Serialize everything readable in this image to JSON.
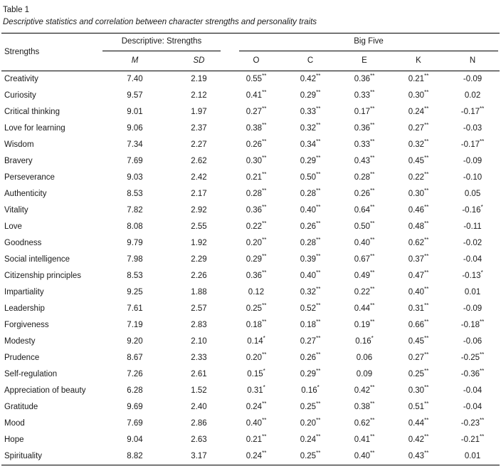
{
  "chart_data": {
    "type": "table",
    "title": "Table 1",
    "caption": "Descriptive statistics and correlation between character strengths and personality traits",
    "column_groups": [
      {
        "label": "",
        "span": 1
      },
      {
        "label": "Descriptive: Strengths",
        "span": 2
      },
      {
        "label": "Big Five",
        "span": 5
      }
    ],
    "columns": [
      "Strengths",
      "M",
      "SD",
      "O",
      "C",
      "E",
      "K",
      "N"
    ],
    "rows": [
      [
        "Creativity",
        "7.40",
        "2.19",
        "0.55**",
        "0.42**",
        "0.36**",
        "0.21**",
        "-0.09"
      ],
      [
        "Curiosity",
        "9.57",
        "2.12",
        "0.41**",
        "0.29**",
        "0.33**",
        "0.30**",
        "0.02"
      ],
      [
        "Critical thinking",
        "9.01",
        "1.97",
        "0.27**",
        "0.33**",
        "0.17**",
        "0.24**",
        "-0.17**"
      ],
      [
        "Love for learning",
        "9.06",
        "2.37",
        "0.38**",
        "0.32**",
        "0.36**",
        "0.27**",
        "-0.03"
      ],
      [
        "Wisdom",
        "7.34",
        "2.27",
        "0.26**",
        "0.34**",
        "0.33**",
        "0.32**",
        "-0.17**"
      ],
      [
        "Bravery",
        "7.69",
        "2.62",
        "0.30**",
        "0.29**",
        "0.43**",
        "0.45**",
        "-0.09"
      ],
      [
        "Perseverance",
        "9.03",
        "2.42",
        "0.21**",
        "0.50**",
        "0.28**",
        "0.22**",
        "-0.10"
      ],
      [
        "Authenticity",
        "8.53",
        "2.17",
        "0.28**",
        "0.28**",
        "0.26**",
        "0.30**",
        "0.05"
      ],
      [
        "Vitality",
        "7.82",
        "2.92",
        "0.36**",
        "0.40**",
        "0.64**",
        "0.46**",
        "-0.16*"
      ],
      [
        "Love",
        "8.08",
        "2.55",
        "0.22**",
        "0.26**",
        "0.50**",
        "0.48**",
        "-0.11"
      ],
      [
        "Goodness",
        "9.79",
        "1.92",
        "0.20**",
        "0.28**",
        "0.40**",
        "0.62**",
        "-0.02"
      ],
      [
        "Social intelligence",
        "7.98",
        "2.29",
        "0.29**",
        "0.39**",
        "0.67**",
        "0.37**",
        "-0.04"
      ],
      [
        "Citizenship principles",
        "8.53",
        "2.26",
        "0.36**",
        "0.40**",
        "0.49**",
        "0.47**",
        "-0.13*"
      ],
      [
        "Impartiality",
        "9.25",
        "1.88",
        "0.12",
        "0.32**",
        "0.22**",
        "0.40**",
        "0.01"
      ],
      [
        "Leadership",
        "7.61",
        "2.57",
        "0.25**",
        "0.52**",
        "0.44**",
        "0.31**",
        "-0.09"
      ],
      [
        "Forgiveness",
        "7.19",
        "2.83",
        "0.18**",
        "0.18**",
        "0.19**",
        "0.66**",
        "-0.18**"
      ],
      [
        "Modesty",
        "9.20",
        "2.10",
        "0.14*",
        "0.27**",
        "0.16*",
        "0.45**",
        "-0.06"
      ],
      [
        "Prudence",
        "8.67",
        "2.33",
        "0.20**",
        "0.26**",
        "0.06",
        "0.27**",
        "-0.25**"
      ],
      [
        "Self-regulation",
        "7.26",
        "2.61",
        "0.15*",
        "0.29**",
        "0.09",
        "0.25**",
        "-0.36**"
      ],
      [
        "Appreciation of beauty",
        "6.28",
        "1.52",
        "0.31*",
        "0.16*",
        "0.42**",
        "0.30**",
        "-0.04"
      ],
      [
        "Gratitude",
        "9.69",
        "2.40",
        "0.24**",
        "0.25**",
        "0.38**",
        "0.51**",
        "-0.04"
      ],
      [
        "Mood",
        "7.69",
        "2.86",
        "0.40**",
        "0.20**",
        "0.62**",
        "0.44**",
        "-0.23**"
      ],
      [
        "Hope",
        "9.04",
        "2.63",
        "0.21**",
        "0.24**",
        "0.41**",
        "0.42**",
        "-0.21**"
      ],
      [
        "Spirituality",
        "8.82",
        "3.17",
        "0.24**",
        "0.25**",
        "0.40**",
        "0.43**",
        "0.01"
      ]
    ]
  }
}
